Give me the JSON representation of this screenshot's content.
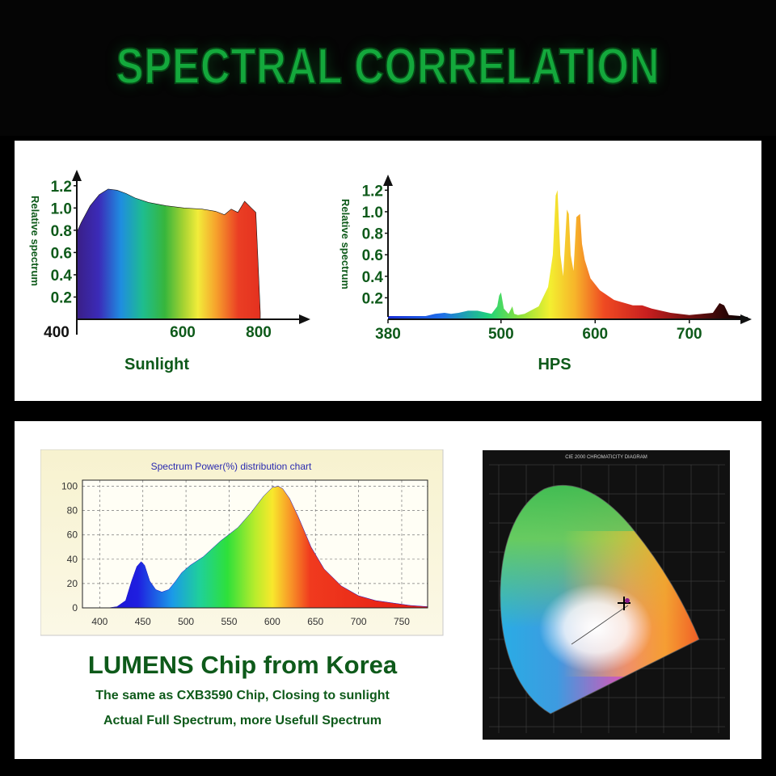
{
  "banner": {
    "title": "SPECTRAL CORRELATION"
  },
  "colors": {
    "title_green": "#14a83c",
    "axis_green": "#0e5a1a",
    "panel_bg": "#ffffff"
  },
  "captions": {
    "headline": "LUMENS Chip from Korea",
    "line1": "The same as CXB3590 Chip, Closing to sunlight",
    "line2": "Actual Full Spectrum, more Usefull Spectrum"
  },
  "chart_data": [
    {
      "type": "area",
      "title": "Sunlight",
      "ylabel": "Relative spectrum",
      "xlabel": "",
      "y_ticks": [
        "0.2",
        "0.4",
        "0.6",
        "0.8",
        "1.0",
        "1.2"
      ],
      "x_ticks": [
        "400",
        "600",
        "800"
      ],
      "xlim": [
        400,
        900
      ],
      "ylim": [
        0,
        1.3
      ],
      "x": [
        400,
        410,
        430,
        450,
        470,
        490,
        510,
        530,
        560,
        600,
        640,
        680,
        710,
        730,
        745,
        760,
        775,
        790,
        800,
        810
      ],
      "y": [
        0.78,
        0.87,
        1.02,
        1.12,
        1.17,
        1.16,
        1.13,
        1.09,
        1.05,
        1.02,
        1.0,
        0.99,
        0.97,
        0.94,
        0.99,
        0.96,
        1.06,
        1.0,
        0.96,
        0.06
      ]
    },
    {
      "type": "area",
      "title": "HPS",
      "ylabel": "Relative spectrum",
      "xlabel": "",
      "y_ticks": [
        "0.2",
        "0.4",
        "0.6",
        "0.8",
        "1.0",
        "1.2"
      ],
      "x_ticks": [
        "380",
        "500",
        "600",
        "700"
      ],
      "xlim": [
        380,
        770
      ],
      "ylim": [
        0,
        1.3
      ],
      "x": [
        380,
        420,
        430,
        440,
        447,
        455,
        465,
        475,
        490,
        496,
        498,
        500,
        503,
        508,
        512,
        514,
        518,
        525,
        540,
        550,
        555,
        558,
        560,
        563,
        566,
        570,
        572,
        574,
        577,
        580,
        584,
        586,
        589,
        595,
        605,
        620,
        640,
        650,
        660,
        680,
        700,
        725,
        732,
        737,
        742,
        755,
        762
      ],
      "y": [
        0.03,
        0.03,
        0.05,
        0.06,
        0.05,
        0.06,
        0.08,
        0.08,
        0.05,
        0.12,
        0.22,
        0.25,
        0.1,
        0.05,
        0.12,
        0.05,
        0.04,
        0.05,
        0.12,
        0.3,
        0.6,
        1.15,
        1.2,
        0.6,
        0.4,
        1.02,
        0.98,
        0.6,
        0.45,
        0.95,
        0.98,
        0.7,
        0.55,
        0.38,
        0.27,
        0.18,
        0.13,
        0.13,
        0.1,
        0.06,
        0.04,
        0.06,
        0.15,
        0.13,
        0.04,
        0.03,
        0.02
      ]
    },
    {
      "type": "area",
      "title": "Spectrum Power(%) distribution chart",
      "xlabel": "",
      "ylabel": "",
      "y_ticks": [
        "0",
        "20",
        "40",
        "60",
        "80",
        "100"
      ],
      "x_ticks": [
        "400",
        "450",
        "500",
        "550",
        "600",
        "650",
        "700",
        "750"
      ],
      "xlim": [
        380,
        780
      ],
      "ylim": [
        0,
        105
      ],
      "x": [
        380,
        410,
        420,
        430,
        437,
        443,
        448,
        452,
        458,
        465,
        472,
        480,
        488,
        495,
        505,
        520,
        540,
        560,
        575,
        590,
        600,
        607,
        612,
        620,
        630,
        645,
        660,
        680,
        700,
        720,
        740,
        760,
        780
      ],
      "y": [
        0,
        0,
        1,
        6,
        22,
        34,
        38,
        35,
        22,
        15,
        13,
        15,
        22,
        29,
        35,
        42,
        55,
        66,
        78,
        92,
        99,
        100,
        98,
        90,
        75,
        50,
        32,
        18,
        10,
        6,
        4,
        2,
        1
      ]
    }
  ],
  "cie": {
    "title": "CIE 2000 CHROMATICITY DIAGRAM",
    "bg": "#111111"
  }
}
